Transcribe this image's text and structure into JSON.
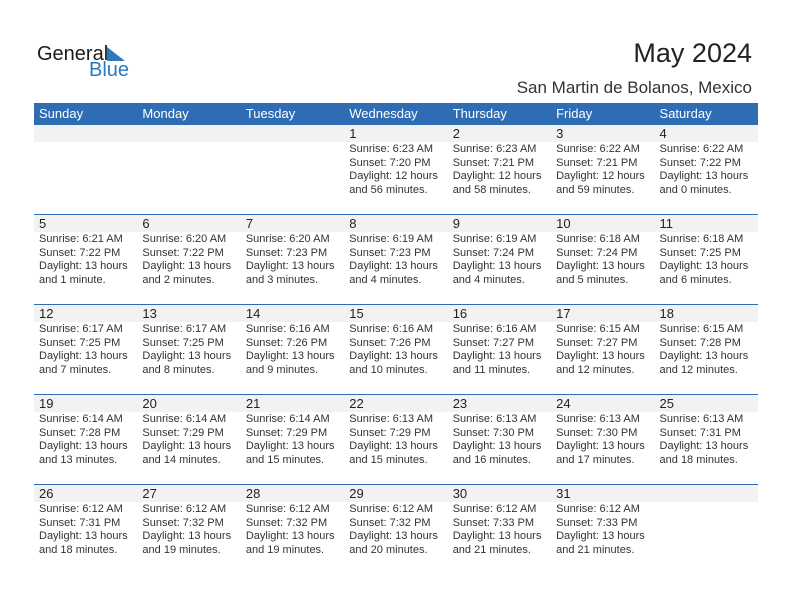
{
  "logo": {
    "general": "General",
    "blue": "Blue"
  },
  "title": "May 2024",
  "location": "San Martin de Bolanos, Mexico",
  "accent": "#2e6db4",
  "weekdays": [
    "Sunday",
    "Monday",
    "Tuesday",
    "Wednesday",
    "Thursday",
    "Friday",
    "Saturday"
  ],
  "weeks": [
    [
      null,
      null,
      null,
      {
        "day": "1",
        "sunrise": "Sunrise: 6:23 AM",
        "sunset": "Sunset: 7:20 PM",
        "daylight": "Daylight: 12 hours",
        "minutes": "and 56 minutes."
      },
      {
        "day": "2",
        "sunrise": "Sunrise: 6:23 AM",
        "sunset": "Sunset: 7:21 PM",
        "daylight": "Daylight: 12 hours",
        "minutes": "and 58 minutes."
      },
      {
        "day": "3",
        "sunrise": "Sunrise: 6:22 AM",
        "sunset": "Sunset: 7:21 PM",
        "daylight": "Daylight: 12 hours",
        "minutes": "and 59 minutes."
      },
      {
        "day": "4",
        "sunrise": "Sunrise: 6:22 AM",
        "sunset": "Sunset: 7:22 PM",
        "daylight": "Daylight: 13 hours",
        "minutes": "and 0 minutes."
      }
    ],
    [
      {
        "day": "5",
        "sunrise": "Sunrise: 6:21 AM",
        "sunset": "Sunset: 7:22 PM",
        "daylight": "Daylight: 13 hours",
        "minutes": "and 1 minute."
      },
      {
        "day": "6",
        "sunrise": "Sunrise: 6:20 AM",
        "sunset": "Sunset: 7:22 PM",
        "daylight": "Daylight: 13 hours",
        "minutes": "and 2 minutes."
      },
      {
        "day": "7",
        "sunrise": "Sunrise: 6:20 AM",
        "sunset": "Sunset: 7:23 PM",
        "daylight": "Daylight: 13 hours",
        "minutes": "and 3 minutes."
      },
      {
        "day": "8",
        "sunrise": "Sunrise: 6:19 AM",
        "sunset": "Sunset: 7:23 PM",
        "daylight": "Daylight: 13 hours",
        "minutes": "and 4 minutes."
      },
      {
        "day": "9",
        "sunrise": "Sunrise: 6:19 AM",
        "sunset": "Sunset: 7:24 PM",
        "daylight": "Daylight: 13 hours",
        "minutes": "and 4 minutes."
      },
      {
        "day": "10",
        "sunrise": "Sunrise: 6:18 AM",
        "sunset": "Sunset: 7:24 PM",
        "daylight": "Daylight: 13 hours",
        "minutes": "and 5 minutes."
      },
      {
        "day": "11",
        "sunrise": "Sunrise: 6:18 AM",
        "sunset": "Sunset: 7:25 PM",
        "daylight": "Daylight: 13 hours",
        "minutes": "and 6 minutes."
      }
    ],
    [
      {
        "day": "12",
        "sunrise": "Sunrise: 6:17 AM",
        "sunset": "Sunset: 7:25 PM",
        "daylight": "Daylight: 13 hours",
        "minutes": "and 7 minutes."
      },
      {
        "day": "13",
        "sunrise": "Sunrise: 6:17 AM",
        "sunset": "Sunset: 7:25 PM",
        "daylight": "Daylight: 13 hours",
        "minutes": "and 8 minutes."
      },
      {
        "day": "14",
        "sunrise": "Sunrise: 6:16 AM",
        "sunset": "Sunset: 7:26 PM",
        "daylight": "Daylight: 13 hours",
        "minutes": "and 9 minutes."
      },
      {
        "day": "15",
        "sunrise": "Sunrise: 6:16 AM",
        "sunset": "Sunset: 7:26 PM",
        "daylight": "Daylight: 13 hours",
        "minutes": "and 10 minutes."
      },
      {
        "day": "16",
        "sunrise": "Sunrise: 6:16 AM",
        "sunset": "Sunset: 7:27 PM",
        "daylight": "Daylight: 13 hours",
        "minutes": "and 11 minutes."
      },
      {
        "day": "17",
        "sunrise": "Sunrise: 6:15 AM",
        "sunset": "Sunset: 7:27 PM",
        "daylight": "Daylight: 13 hours",
        "minutes": "and 12 minutes."
      },
      {
        "day": "18",
        "sunrise": "Sunrise: 6:15 AM",
        "sunset": "Sunset: 7:28 PM",
        "daylight": "Daylight: 13 hours",
        "minutes": "and 12 minutes."
      }
    ],
    [
      {
        "day": "19",
        "sunrise": "Sunrise: 6:14 AM",
        "sunset": "Sunset: 7:28 PM",
        "daylight": "Daylight: 13 hours",
        "minutes": "and 13 minutes."
      },
      {
        "day": "20",
        "sunrise": "Sunrise: 6:14 AM",
        "sunset": "Sunset: 7:29 PM",
        "daylight": "Daylight: 13 hours",
        "minutes": "and 14 minutes."
      },
      {
        "day": "21",
        "sunrise": "Sunrise: 6:14 AM",
        "sunset": "Sunset: 7:29 PM",
        "daylight": "Daylight: 13 hours",
        "minutes": "and 15 minutes."
      },
      {
        "day": "22",
        "sunrise": "Sunrise: 6:13 AM",
        "sunset": "Sunset: 7:29 PM",
        "daylight": "Daylight: 13 hours",
        "minutes": "and 15 minutes."
      },
      {
        "day": "23",
        "sunrise": "Sunrise: 6:13 AM",
        "sunset": "Sunset: 7:30 PM",
        "daylight": "Daylight: 13 hours",
        "minutes": "and 16 minutes."
      },
      {
        "day": "24",
        "sunrise": "Sunrise: 6:13 AM",
        "sunset": "Sunset: 7:30 PM",
        "daylight": "Daylight: 13 hours",
        "minutes": "and 17 minutes."
      },
      {
        "day": "25",
        "sunrise": "Sunrise: 6:13 AM",
        "sunset": "Sunset: 7:31 PM",
        "daylight": "Daylight: 13 hours",
        "minutes": "and 18 minutes."
      }
    ],
    [
      {
        "day": "26",
        "sunrise": "Sunrise: 6:12 AM",
        "sunset": "Sunset: 7:31 PM",
        "daylight": "Daylight: 13 hours",
        "minutes": "and 18 minutes."
      },
      {
        "day": "27",
        "sunrise": "Sunrise: 6:12 AM",
        "sunset": "Sunset: 7:32 PM",
        "daylight": "Daylight: 13 hours",
        "minutes": "and 19 minutes."
      },
      {
        "day": "28",
        "sunrise": "Sunrise: 6:12 AM",
        "sunset": "Sunset: 7:32 PM",
        "daylight": "Daylight: 13 hours",
        "minutes": "and 19 minutes."
      },
      {
        "day": "29",
        "sunrise": "Sunrise: 6:12 AM",
        "sunset": "Sunset: 7:32 PM",
        "daylight": "Daylight: 13 hours",
        "minutes": "and 20 minutes."
      },
      {
        "day": "30",
        "sunrise": "Sunrise: 6:12 AM",
        "sunset": "Sunset: 7:33 PM",
        "daylight": "Daylight: 13 hours",
        "minutes": "and 21 minutes."
      },
      {
        "day": "31",
        "sunrise": "Sunrise: 6:12 AM",
        "sunset": "Sunset: 7:33 PM",
        "daylight": "Daylight: 13 hours",
        "minutes": "and 21 minutes."
      },
      null
    ]
  ]
}
